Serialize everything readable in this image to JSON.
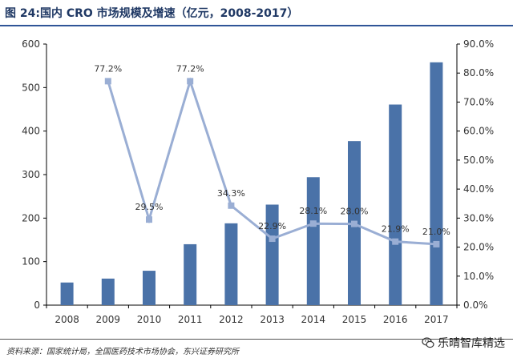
{
  "header": {
    "title": "图 24:国内 CRO 市场规模及增速（亿元，2008-2017）"
  },
  "footer": {
    "source": "资料来源：国家统计局，全国医药技术市场协会，东兴证券研究所",
    "watermark": "乐晴智库精选",
    "watermark_icon": "wechat-logo-icon"
  },
  "colors": {
    "bar": "#4a72a8",
    "line": "#9aaed4",
    "axis": "#000000",
    "text": "#333333",
    "title": "#1f3864"
  },
  "chart_data": {
    "type": "bar+line",
    "categories": [
      "2008",
      "2009",
      "2010",
      "2011",
      "2012",
      "2013",
      "2014",
      "2015",
      "2016",
      "2017"
    ],
    "series": [
      {
        "name": "市场规模（亿元）",
        "kind": "bar",
        "axis": "left",
        "values": [
          52,
          61,
          79,
          140,
          188,
          231,
          294,
          377,
          461,
          558
        ]
      },
      {
        "name": "增速",
        "kind": "line",
        "axis": "right",
        "values": [
          null,
          77.2,
          29.5,
          77.2,
          34.3,
          22.9,
          28.1,
          28.0,
          21.9,
          21.0
        ],
        "labels": [
          null,
          "77.2%",
          "29.5%",
          "77.2%",
          "34.3%",
          "22.9%",
          "28.1%",
          "28.0%",
          "21.9%",
          "21.0%"
        ]
      }
    ],
    "y_left": {
      "lim": [
        0,
        600
      ],
      "ticks": [
        "0",
        "100",
        "200",
        "300",
        "400",
        "500",
        "600"
      ]
    },
    "y_right": {
      "lim": [
        0,
        90
      ],
      "ticks": [
        "0.0%",
        "10.0%",
        "20.0%",
        "30.0%",
        "40.0%",
        "50.0%",
        "60.0%",
        "70.0%",
        "80.0%",
        "90.0%"
      ]
    },
    "grid": false,
    "legend": "none"
  }
}
